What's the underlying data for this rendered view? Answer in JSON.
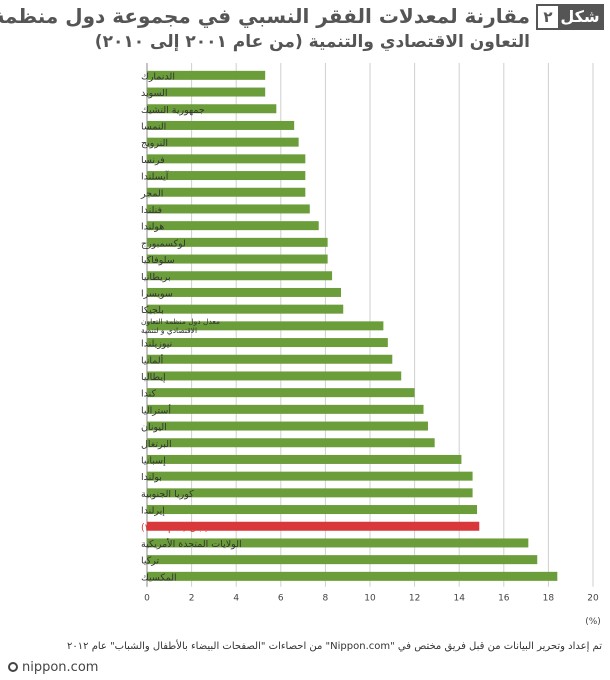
{
  "header": {
    "fig_label": "شكل",
    "fig_number": "٢",
    "title_line1": "مقارنة لمعدلات الفقر النسبي في مجموعة دول منظمة",
    "title_line2": "التعاون الاقتصادي والتنمية (من عام ٢٠٠١ إلى ٢٠١٠)"
  },
  "chart_data": {
    "type": "bar",
    "orientation": "horizontal",
    "unit_label": "(%)",
    "xlim": [
      0,
      20
    ],
    "x_ticks": [
      0,
      2,
      4,
      6,
      8,
      10,
      12,
      14,
      16,
      18,
      20
    ],
    "grid": true,
    "bar_color": "#6b9e3a",
    "highlight_color": "#d9383a",
    "categories": [
      {
        "label": "الدنمارك",
        "value": 5.3
      },
      {
        "label": "السويد",
        "value": 5.3
      },
      {
        "label": "جمهورية التشيك",
        "value": 5.8
      },
      {
        "label": "النمسا",
        "value": 6.6
      },
      {
        "label": "النرويج",
        "value": 6.8
      },
      {
        "label": "فرنسا",
        "value": 7.1
      },
      {
        "label": "آيسلندا",
        "value": 7.1
      },
      {
        "label": "المجر",
        "value": 7.1
      },
      {
        "label": "فنلندا",
        "value": 7.3
      },
      {
        "label": "هولندا",
        "value": 7.7
      },
      {
        "label": "لوكسمبورج",
        "value": 8.1
      },
      {
        "label": "سلوفاكيا",
        "value": 8.1
      },
      {
        "label": "بريطانيا",
        "value": 8.3
      },
      {
        "label": "سويسرا",
        "value": 8.7
      },
      {
        "label": "بلجيكا",
        "value": 8.8
      },
      {
        "label": "معدل دول منظمة التعاون\nالاقتصادي و لتنمية",
        "value": 10.6
      },
      {
        "label": "نيوزيلندا",
        "value": 10.8
      },
      {
        "label": "ألمانيا",
        "value": 11.0
      },
      {
        "label": "إيطاليا",
        "value": 11.4
      },
      {
        "label": "كندا",
        "value": 12.0
      },
      {
        "label": "أستراليا",
        "value": 12.4
      },
      {
        "label": "اليونان",
        "value": 12.6
      },
      {
        "label": "البرتغال",
        "value": 12.9
      },
      {
        "label": "إسبانيا",
        "value": 14.1
      },
      {
        "label": "بولندا",
        "value": 14.6
      },
      {
        "label": "كوريا الجنوبية",
        "value": 14.6
      },
      {
        "label": "إيرلندا",
        "value": 14.8
      },
      {
        "label": "اليابان (عام ٢٠٠٤)",
        "value": 14.9,
        "highlight": true
      },
      {
        "label": "الولايات المتحدة الأمريكية",
        "value": 17.1
      },
      {
        "label": "تركيا",
        "value": 17.5
      },
      {
        "label": "المكسيك",
        "value": 18.4
      }
    ]
  },
  "footer": {
    "source_note": "تم إعداد وتحرير البيانات من قبل فريق مختص في \"Nippon.com\" من احصاءات \"الصفحات البيضاء بالأطفال والشباب\" عام ٢٠١٢",
    "brand": "nippon.com"
  }
}
